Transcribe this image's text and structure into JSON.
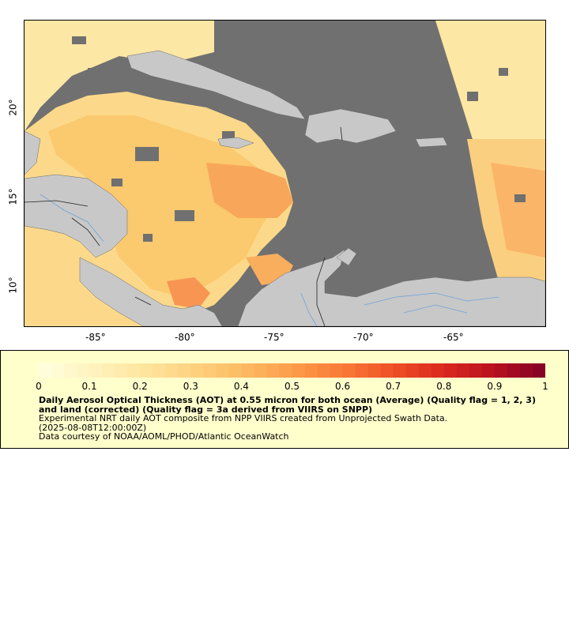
{
  "map": {
    "y_ticks": [
      "20°",
      "15°",
      "10°"
    ],
    "x_ticks": [
      "-85°",
      "-80°",
      "-75°",
      "-70°",
      "-65°"
    ],
    "colors": {
      "no_data": "#707070",
      "land": "#c8c8c8",
      "river": "#6fa3d8",
      "border": "#222222"
    }
  },
  "legend": {
    "colorbar_ticks": [
      "0",
      "0.1",
      "0.2",
      "0.3",
      "0.4",
      "0.5",
      "0.6",
      "0.7",
      "0.8",
      "0.9",
      "1"
    ],
    "colorbar_range": [
      0,
      1
    ],
    "colormap": [
      "#ffffe0",
      "#fff4c0",
      "#ffe6a0",
      "#fed382",
      "#fdbb64",
      "#fc9d4a",
      "#f97a36",
      "#ee5026",
      "#d9281e",
      "#b8101e",
      "#800026"
    ],
    "title": "Daily Aerosol Optical Thickness (AOT) at 0.55 micron for both ocean (Average) (Quality flag = 1, 2, 3) and land (corrected) (Quality flag = 3a derived from VIIRS on SNPP)",
    "line2": "Experimental NRT daily AOT composite from NPP VIIRS created from Unprojected Swath Data.",
    "line3": "(2025-08-08T12:00:00Z)",
    "line4": "Data courtesy of NOAA/AOML/PHOD/Atlantic OceanWatch"
  }
}
